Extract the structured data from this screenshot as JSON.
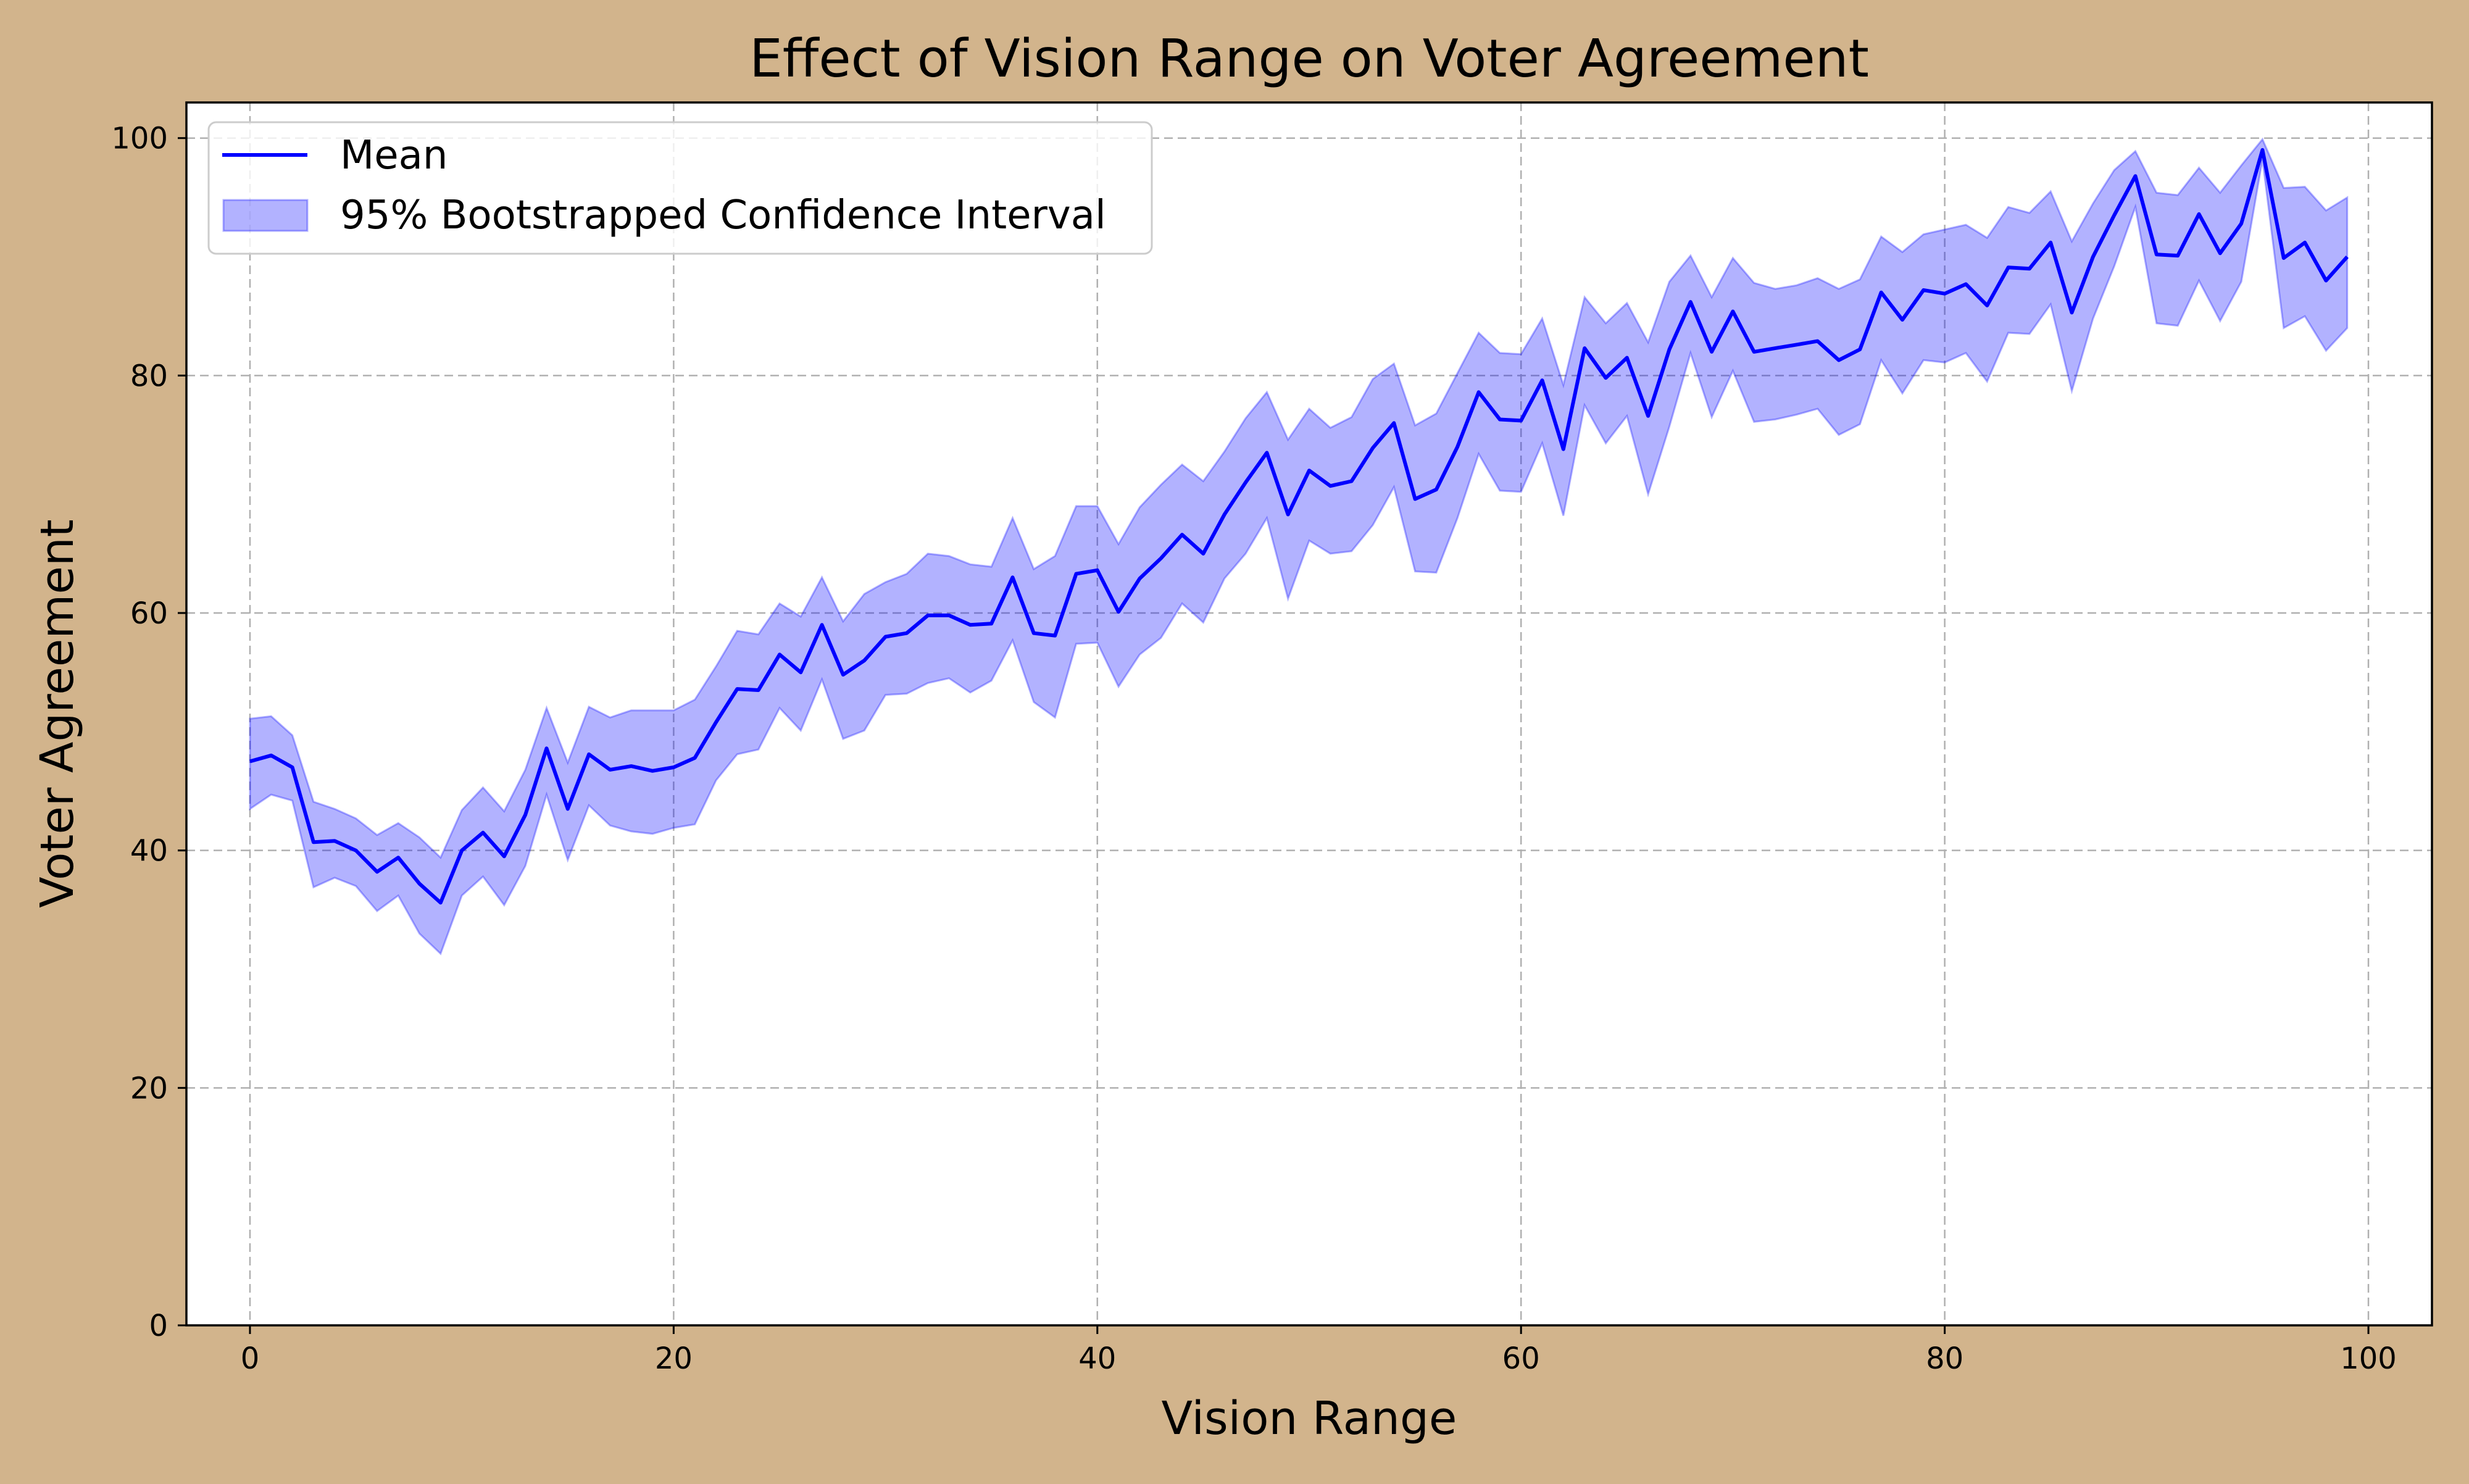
{
  "colors": {
    "page_background": "#d2b48c",
    "plot_background": "#ffffff",
    "mean_line": "#0000ff",
    "ci_fill": "#0000ff",
    "grid": "#b0b0b0",
    "axes": "#000000"
  },
  "chart_data": {
    "type": "line",
    "title": "Effect of Vision Range on Voter Agreement",
    "xlabel": "Vision Range",
    "ylabel": "Voter Agreement",
    "xlim": [
      -3,
      103
    ],
    "ylim": [
      0,
      103
    ],
    "xticks": [
      0,
      20,
      40,
      60,
      80,
      100
    ],
    "yticks": [
      0,
      20,
      40,
      60,
      80,
      100
    ],
    "grid": true,
    "legend_position": "top-left",
    "x": [
      0,
      1,
      2,
      3,
      4,
      5,
      6,
      7,
      8,
      9,
      10,
      11,
      12,
      13,
      14,
      15,
      16,
      17,
      18,
      19,
      20,
      21,
      22,
      23,
      24,
      25,
      26,
      27,
      28,
      29,
      30,
      31,
      32,
      33,
      34,
      35,
      36,
      37,
      38,
      39,
      40,
      41,
      42,
      43,
      44,
      45,
      46,
      47,
      48,
      49,
      50,
      51,
      52,
      53,
      54,
      55,
      56,
      57,
      58,
      59,
      60,
      61,
      62,
      63,
      64,
      65,
      66,
      67,
      68,
      69,
      70,
      71,
      72,
      73,
      74,
      75,
      76,
      77,
      78,
      79,
      80,
      81,
      82,
      83,
      84,
      85,
      86,
      87,
      88,
      89,
      90,
      91,
      92,
      93,
      94,
      95,
      96,
      97,
      98,
      99
    ],
    "series": [
      {
        "name": "Mean",
        "kind": "line",
        "color": "#0000ff",
        "values": [
          47.5,
          48.0,
          47.0,
          40.7,
          40.8,
          40.0,
          38.2,
          39.4,
          37.2,
          35.6,
          40.0,
          41.5,
          39.5,
          43.0,
          48.6,
          43.5,
          48.1,
          46.8,
          47.1,
          46.7,
          47.0,
          47.8,
          50.8,
          53.6,
          53.5,
          56.5,
          55.0,
          59.0,
          54.8,
          56.0,
          58.0,
          58.3,
          59.8,
          59.8,
          59.0,
          59.1,
          63.0,
          58.3,
          58.1,
          63.3,
          63.6,
          60.1,
          62.9,
          64.6,
          66.6,
          65.0,
          68.3,
          71.0,
          73.5,
          68.3,
          72.0,
          70.7,
          71.1,
          73.9,
          76.0,
          69.6,
          70.4,
          74.0,
          78.6,
          76.3,
          76.2,
          79.6,
          73.8,
          82.3,
          79.8,
          81.5,
          76.6,
          82.2,
          86.2,
          82.0,
          85.4,
          82.0,
          82.3,
          82.6,
          82.9,
          81.3,
          82.2,
          87.0,
          84.7,
          87.2,
          86.9,
          87.7,
          85.9,
          89.1,
          89.0,
          91.2,
          85.3,
          90.0,
          93.5,
          96.8,
          90.2,
          90.1,
          93.6,
          90.3,
          92.8,
          99.0,
          89.9,
          91.2,
          88.0,
          90.0
        ]
      },
      {
        "name": "95% Bootstrapped Confidence Interval",
        "kind": "band",
        "color": "#0000ff",
        "opacity": 0.3,
        "lower": [
          43.5,
          44.7,
          44.2,
          36.9,
          37.7,
          37.0,
          34.9,
          36.2,
          33.0,
          31.3,
          36.2,
          37.8,
          35.4,
          38.7,
          44.7,
          39.2,
          43.8,
          42.1,
          41.6,
          41.4,
          41.9,
          42.2,
          45.9,
          48.1,
          48.5,
          52.0,
          50.1,
          54.4,
          49.4,
          50.1,
          53.1,
          53.2,
          54.1,
          54.5,
          53.3,
          54.3,
          57.7,
          52.5,
          51.2,
          57.4,
          57.5,
          53.8,
          56.5,
          57.9,
          60.8,
          59.2,
          62.9,
          65.0,
          68.0,
          61.2,
          66.1,
          65.0,
          65.2,
          67.4,
          70.6,
          63.5,
          63.4,
          68.0,
          73.4,
          70.3,
          70.2,
          74.3,
          68.2,
          77.5,
          74.3,
          76.6,
          70.0,
          75.7,
          81.9,
          76.5,
          80.4,
          76.1,
          76.3,
          76.7,
          77.2,
          75.0,
          75.9,
          81.3,
          78.5,
          81.3,
          81.1,
          81.9,
          79.5,
          83.6,
          83.5,
          86.0,
          78.7,
          84.8,
          89.2,
          94.2,
          84.4,
          84.2,
          88.0,
          84.6,
          87.9,
          98.2,
          84.0,
          85.0,
          82.1,
          84.0
        ],
        "upper": [
          51.1,
          51.3,
          49.7,
          44.1,
          43.5,
          42.7,
          41.3,
          42.3,
          41.1,
          39.4,
          43.4,
          45.3,
          43.3,
          46.8,
          52.0,
          47.4,
          52.1,
          51.2,
          51.8,
          51.8,
          51.8,
          52.7,
          55.5,
          58.5,
          58.2,
          60.8,
          59.7,
          63.0,
          59.3,
          61.6,
          62.6,
          63.3,
          65.0,
          64.8,
          64.1,
          63.9,
          68.0,
          63.7,
          64.8,
          69.0,
          69.0,
          65.8,
          68.9,
          70.8,
          72.5,
          71.1,
          73.6,
          76.4,
          78.6,
          74.6,
          77.2,
          75.6,
          76.5,
          79.7,
          81.0,
          75.8,
          76.8,
          80.2,
          83.6,
          81.9,
          81.8,
          84.8,
          79.2,
          86.6,
          84.4,
          86.1,
          82.8,
          87.9,
          90.1,
          86.6,
          89.9,
          87.8,
          87.3,
          87.6,
          88.2,
          87.3,
          88.1,
          91.7,
          90.4,
          91.9,
          92.3,
          92.7,
          91.6,
          94.2,
          93.7,
          95.5,
          91.3,
          94.5,
          97.3,
          98.9,
          95.4,
          95.2,
          97.5,
          95.4,
          97.7,
          99.9,
          95.8,
          95.9,
          93.9,
          95.0
        ]
      }
    ]
  }
}
